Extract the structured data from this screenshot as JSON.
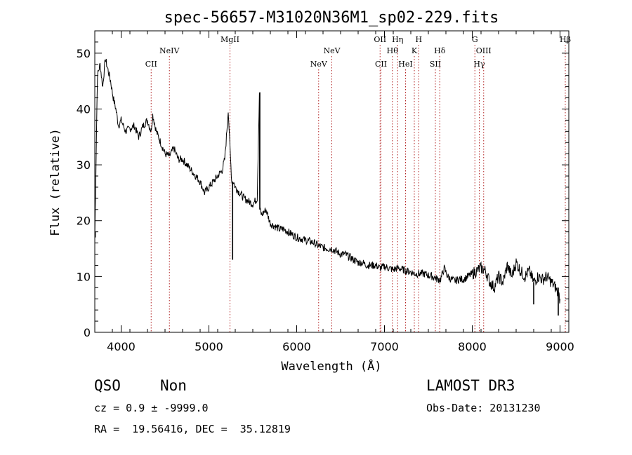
{
  "chart_data": {
    "type": "line",
    "title": "spec-56657-M31020N36M1_sp02-229.fits",
    "xlabel": "Wavelength (Å)",
    "ylabel": "Flux (relative)",
    "xlim": [
      3700,
      9100
    ],
    "ylim": [
      0,
      54
    ],
    "xticks": [
      4000,
      5000,
      6000,
      7000,
      8000,
      9000
    ],
    "yticks": [
      0,
      10,
      20,
      30,
      40,
      50
    ],
    "series": [
      {
        "name": "spectrum",
        "x": [
          3700,
          3730,
          3760,
          3790,
          3820,
          3850,
          3880,
          3910,
          3940,
          3970,
          4000,
          4050,
          4100,
          4150,
          4200,
          4250,
          4300,
          4340,
          4360,
          4400,
          4450,
          4500,
          4550,
          4600,
          4650,
          4700,
          4750,
          4800,
          4850,
          4900,
          4950,
          5000,
          5050,
          5100,
          5150,
          5180,
          5200,
          5220,
          5240,
          5260,
          5280,
          5300,
          5350,
          5400,
          5450,
          5500,
          5550,
          5575,
          5577,
          5580,
          5600,
          5650,
          5700,
          5750,
          5800,
          5850,
          5900,
          5950,
          6000,
          6050,
          6100,
          6150,
          6200,
          6250,
          6300,
          6350,
          6400,
          6450,
          6500,
          6550,
          6600,
          6650,
          6700,
          6750,
          6800,
          6850,
          6900,
          6950,
          7000,
          7050,
          7100,
          7150,
          7200,
          7250,
          7300,
          7350,
          7400,
          7450,
          7500,
          7550,
          7600,
          7640,
          7680,
          7720,
          7760,
          7800,
          7850,
          7900,
          7950,
          8000,
          8050,
          8100,
          8150,
          8200,
          8250,
          8300,
          8350,
          8400,
          8450,
          8500,
          8550,
          8600,
          8650,
          8700,
          8750,
          8800,
          8850,
          8900,
          8950,
          9000
        ],
        "values": [
          17,
          46,
          48,
          44,
          49,
          47,
          45,
          42,
          40,
          37,
          38,
          36,
          36.5,
          37,
          35,
          37,
          38,
          36,
          39,
          36,
          34,
          32,
          31.5,
          33,
          31,
          31,
          30,
          29,
          28,
          27,
          25,
          26,
          27,
          28,
          29,
          31,
          35,
          40,
          33,
          27,
          27,
          26,
          25,
          24,
          23.5,
          23,
          24,
          43,
          27,
          22,
          21,
          22,
          19.5,
          19,
          18.5,
          18.5,
          18,
          17.5,
          17,
          16.8,
          16.5,
          16.3,
          16,
          15.5,
          15.2,
          15,
          15,
          14.5,
          14,
          14,
          13.5,
          13,
          12.5,
          12.5,
          12,
          12,
          12,
          11.5,
          11.8,
          11.5,
          11.2,
          11.5,
          11.3,
          11,
          10.8,
          10.5,
          10.5,
          10.5,
          10.2,
          10,
          9.5,
          9.5,
          11.5,
          10,
          9.5,
          9.2,
          9.5,
          9.5,
          10,
          10.5,
          11,
          11.5,
          11,
          9,
          8,
          10,
          9,
          12,
          10,
          12.5,
          11,
          10,
          11,
          9,
          10,
          9.5,
          10,
          9,
          8,
          6
        ],
        "spikes": [
          {
            "x": 3705,
            "y": 18
          },
          {
            "x": 5580,
            "y": 43
          },
          {
            "x": 5270,
            "y": 13
          },
          {
            "x": 8700,
            "y": 5
          },
          {
            "x": 8980,
            "y": 3
          }
        ]
      }
    ],
    "line_markers": [
      {
        "x": 4342,
        "label": "CII",
        "row": 2
      },
      {
        "x": 4550,
        "label": "NeIV",
        "row": 1
      },
      {
        "x": 5240,
        "label": "MgII",
        "row": 0
      },
      {
        "x": 6250,
        "label": "NeV",
        "row": 2
      },
      {
        "x": 6400,
        "label": "NeV",
        "row": 1
      },
      {
        "x": 6950,
        "label": "OII",
        "row": 0
      },
      {
        "x": 6960,
        "label": "CII",
        "row": 2
      },
      {
        "x": 7090,
        "label": "Hθ",
        "row": 1
      },
      {
        "x": 7150,
        "label": "Hη",
        "row": 0
      },
      {
        "x": 7240,
        "label": "HeI",
        "row": 2
      },
      {
        "x": 7340,
        "label": "K",
        "row": 1
      },
      {
        "x": 7390,
        "label": "H",
        "row": 0
      },
      {
        "x": 7580,
        "label": "SII",
        "row": 2
      },
      {
        "x": 7630,
        "label": "Hδ",
        "row": 1
      },
      {
        "x": 8030,
        "label": "G",
        "row": 0
      },
      {
        "x": 8080,
        "label": "Hγ",
        "row": 2
      },
      {
        "x": 8130,
        "label": "OIII",
        "row": 1
      },
      {
        "x": 9060,
        "label": "Hβ",
        "row": 0
      }
    ]
  },
  "info": {
    "class": "QSO",
    "subclass": "Non",
    "cz": "cz = 0.9 ± -9999.0",
    "radec": "RA =  19.56416, DEC =  35.12819",
    "survey": "LAMOST DR3",
    "obsdate": "Obs-Date: 20131230"
  }
}
